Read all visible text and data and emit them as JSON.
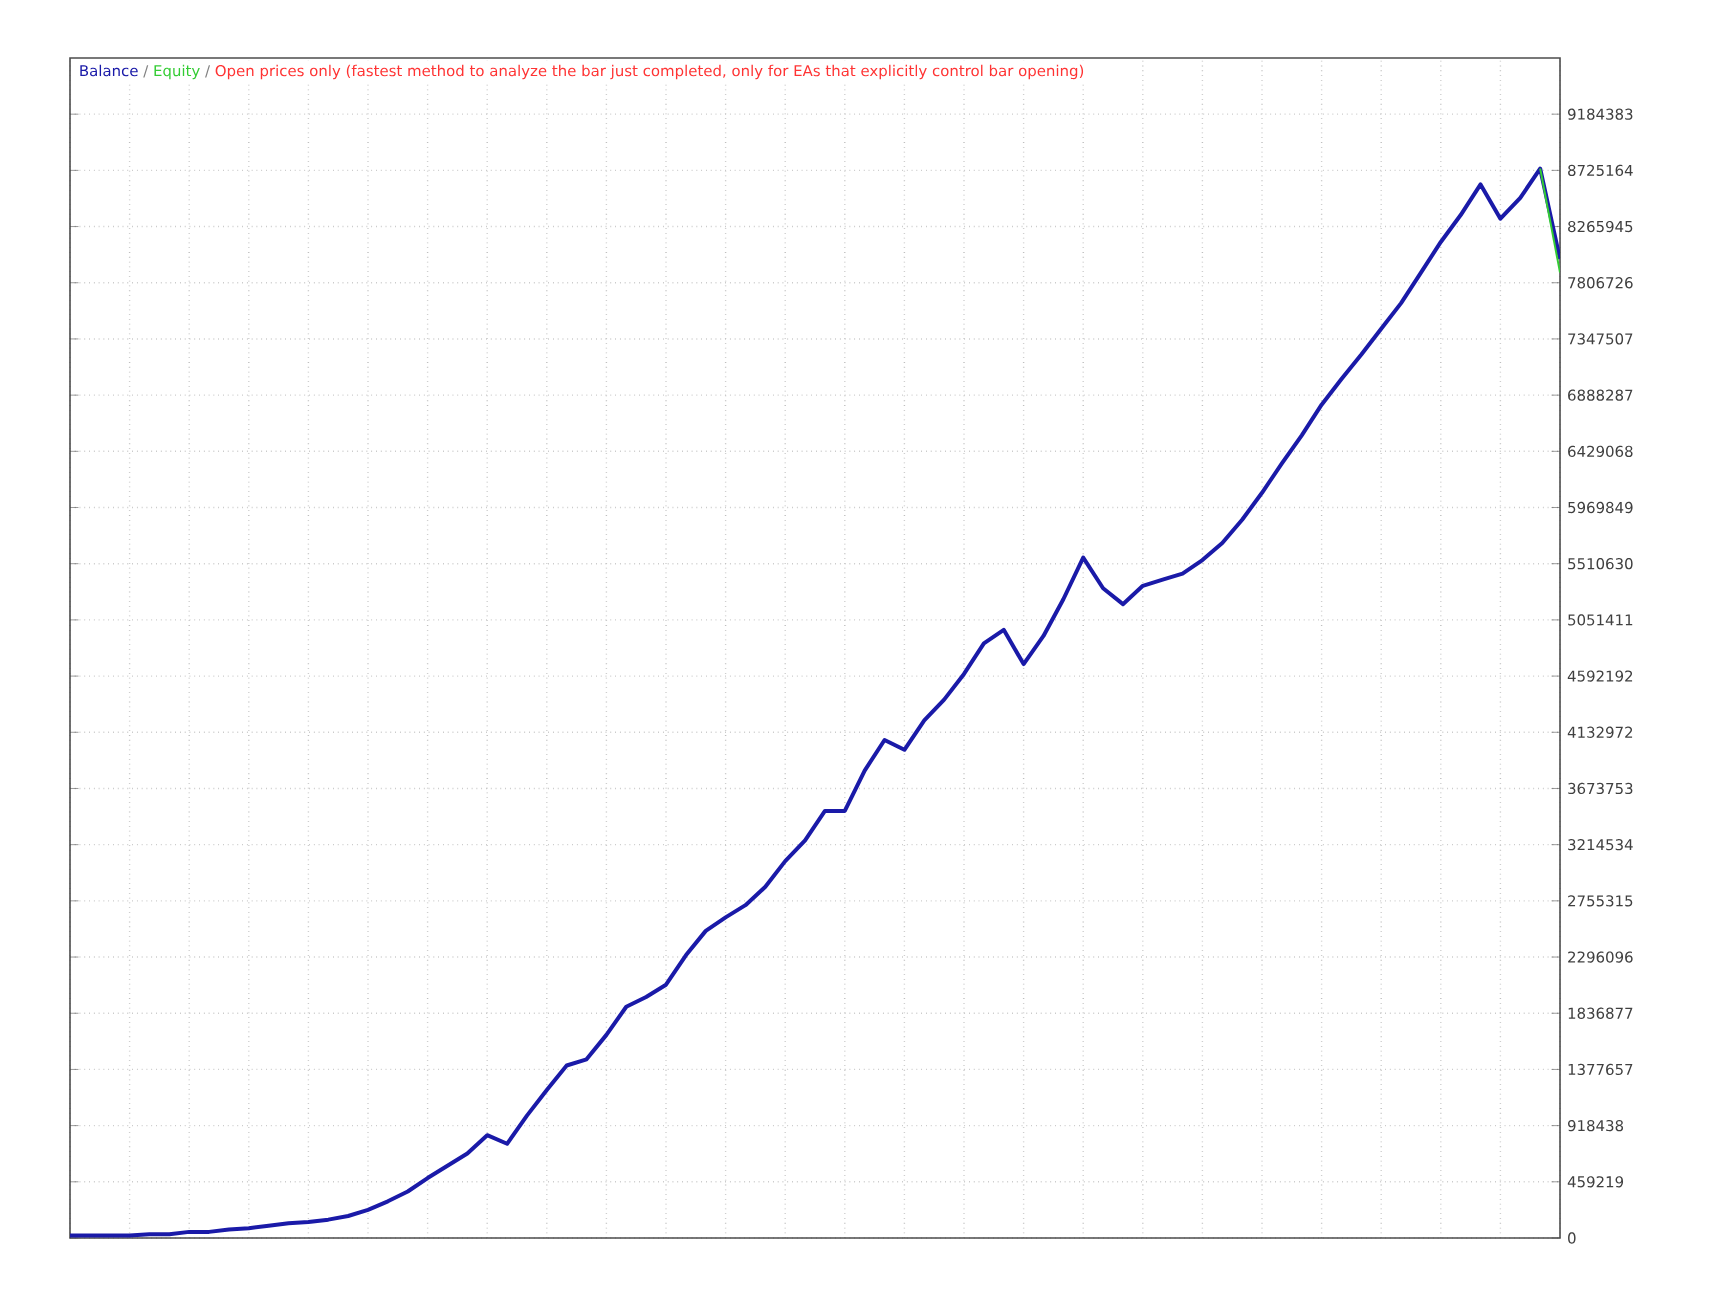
{
  "chart_data": {
    "type": "line",
    "subtitle": "Open prices only (fastest method to analyze the bar just completed, only for EAs that explicitly control bar opening)",
    "annotations": [
      "/",
      "/"
    ],
    "categories": [
      null,
      null,
      null,
      null,
      null,
      null,
      null,
      null,
      null,
      null,
      null,
      null,
      null,
      null,
      null,
      null,
      null,
      null,
      null,
      null,
      null,
      null,
      null,
      null,
      null,
      null,
      null,
      null,
      null,
      null,
      null,
      null,
      null,
      null,
      null,
      null,
      null,
      null,
      null,
      null,
      null,
      null,
      null,
      null,
      null,
      null,
      null,
      null,
      null,
      null,
      null,
      null,
      null,
      null,
      null,
      null,
      null,
      null,
      null,
      null,
      null,
      null,
      null,
      null,
      null,
      null,
      null,
      null,
      null,
      null,
      null,
      null,
      null,
      null,
      null,
      null
    ],
    "series": [
      {
        "name": "Balance",
        "color": "#1a1aa8",
        "values": [
          20000,
          20000,
          20000,
          20000,
          30000,
          30000,
          50000,
          50000,
          70000,
          80000,
          100000,
          120000,
          130000,
          150000,
          180000,
          230000,
          300000,
          380000,
          490000,
          590000,
          690000,
          840000,
          770000,
          1000000,
          1210000,
          1410000,
          1460000,
          1660000,
          1890000,
          1970000,
          2070000,
          2310000,
          2510000,
          2620000,
          2720000,
          2870000,
          3080000,
          3250000,
          3490000,
          3490000,
          3820000,
          4070000,
          3990000,
          4230000,
          4400000,
          4610000,
          4860000,
          4970000,
          4690000,
          4920000,
          5220000,
          5560000,
          5310000,
          5180000,
          5330000,
          5380000,
          5430000,
          5540000,
          5680000,
          5870000,
          6090000,
          6330000,
          6560000,
          6810000,
          7020000,
          7220000,
          7430000,
          7640000,
          7890000,
          8140000,
          8360000,
          8610000,
          8330000,
          8500000,
          8740000,
          8000000
        ]
      },
      {
        "name": "Equity",
        "color": "#33cc33",
        "values": [
          null,
          null,
          null,
          null,
          null,
          null,
          null,
          null,
          null,
          null,
          null,
          null,
          null,
          null,
          null,
          null,
          null,
          null,
          null,
          null,
          null,
          null,
          null,
          null,
          null,
          null,
          null,
          null,
          null,
          null,
          null,
          null,
          null,
          null,
          null,
          null,
          null,
          null,
          null,
          null,
          null,
          null,
          null,
          null,
          null,
          null,
          null,
          null,
          null,
          null,
          null,
          null,
          null,
          null,
          null,
          null,
          null,
          null,
          null,
          null,
          null,
          null,
          null,
          null,
          null,
          null,
          null,
          null,
          null,
          null,
          null,
          null,
          null,
          null,
          8740000,
          7890000
        ]
      }
    ],
    "ylim": [
      0,
      9643602
    ],
    "yticks": [
      0,
      459219,
      918438,
      1377657,
      1836877,
      2296096,
      2755315,
      3214534,
      3673753,
      4132972,
      4592192,
      5051411,
      5510630,
      5969849,
      6429068,
      6888287,
      7347507,
      7806726,
      8265945,
      8725164,
      9184383
    ],
    "grid": true,
    "legend": "top left",
    "marker": "none",
    "line_style": "solid"
  }
}
